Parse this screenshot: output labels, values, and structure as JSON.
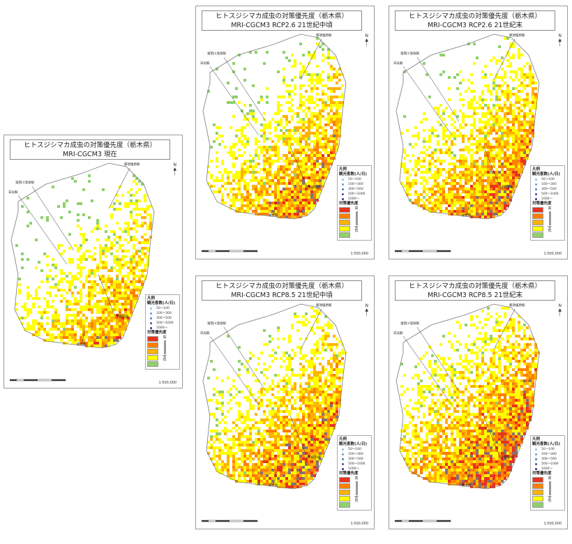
{
  "panels": [
    {
      "title1": "ヒトスジシマカ成虫の対策優先度（栃木県）",
      "title2": "MRI-CGCM3 現在"
    },
    {
      "title1": "ヒトスジシマカ成虫の対策優先度（栃木県）",
      "title2": "MRI-CGCM3 RCP2.6 21世紀中頃"
    },
    {
      "title1": "ヒトスジシマカ成虫の対策優先度（栃木県）",
      "title2": "MRI-CGCM3 RCP2.6 21世紀末"
    },
    {
      "title1": "ヒトスジシマカ成虫の対策優先度（栃木県）",
      "title2": "MRI-CGCM3 RCP8.5 21世紀中頃"
    },
    {
      "title1": "ヒトスジシマカ成虫の対策優先度（栃木県）",
      "title2": "MRI-CGCM3 RCP8.5 21世紀末"
    }
  ],
  "stations": {
    "kinugawa": "鬼怒川温泉駅",
    "nikko": "日光駅",
    "nasushiobara": "那須塩原駅",
    "utsunomiya": "宇都宮駅",
    "tochigi": "栃木駅"
  },
  "legend": {
    "title": "凡例",
    "density_title": "観光客数(人/日)",
    "density_classes": [
      "50～100",
      "100～300",
      "300～500",
      "500～1000",
      "1000～"
    ],
    "density_colors": [
      "#8fc3e8",
      "#5f9fd8",
      "#4a7fc8",
      "#5a3fb0",
      "#3a2a90"
    ],
    "priority_title": "対策優先度",
    "priority_high": "高",
    "priority_low": "低",
    "priority_colors": [
      "#e8321e",
      "#ff7f00",
      "#ffb400",
      "#ffff00",
      "#8fd16a"
    ]
  },
  "scale": "1:500,000",
  "north": "N"
}
